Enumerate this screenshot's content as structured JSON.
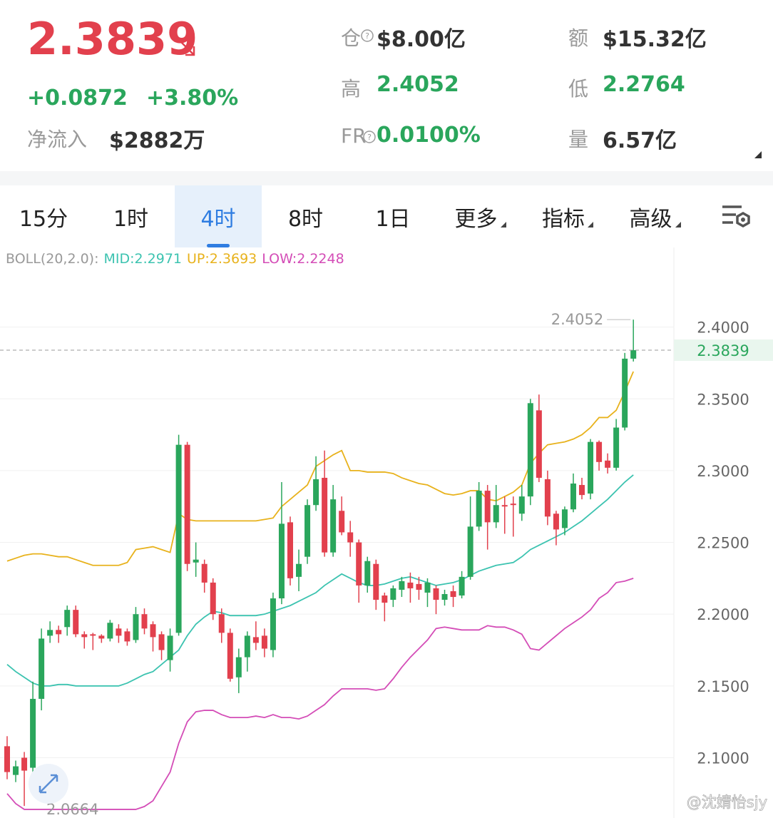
{
  "header": {
    "price": "2.3839",
    "change": "+0.0872",
    "change_pct": "+3.80%",
    "net_inflow_label": "净流入",
    "net_inflow": "$2882万",
    "stats": [
      {
        "label": "仓",
        "value": "$8.00亿"
      },
      {
        "label": "额",
        "value": "$15.32亿"
      },
      {
        "label": "高",
        "value": "2.4052"
      },
      {
        "label": "低",
        "value": "2.2764"
      },
      {
        "label": "FR",
        "value": "0.0100%"
      },
      {
        "label": "量",
        "value": "6.57亿"
      }
    ]
  },
  "tabs": [
    "15分",
    "1时",
    "4时",
    "8时",
    "1日",
    "更多",
    "指标",
    "高级"
  ],
  "active_tab": 2,
  "indicator": {
    "name": "BOLL(20,2.0):",
    "mid": "MID:2.2971",
    "up": "UP:2.3693",
    "low": "LOW:2.2248"
  },
  "watermark": "@沈婧怡sjy",
  "chart_data": {
    "type": "candlestick",
    "up_color": "#2aa65c",
    "down_color": "#e2404d",
    "open": [
      2.108,
      2.088,
      2.1,
      2.093,
      2.141,
      2.185,
      2.189,
      2.191,
      2.203,
      2.186,
      2.186,
      2.185,
      2.183,
      2.19,
      2.188,
      2.182,
      2.2,
      2.193,
      2.186,
      2.168,
      2.187,
      2.318,
      2.236,
      2.235,
      2.222,
      2.2,
      2.187,
      2.156,
      2.17,
      2.184,
      2.185,
      2.175,
      2.211,
      2.264,
      2.226,
      2.24,
      2.276,
      2.295,
      2.243,
      2.272,
      2.257,
      2.25,
      2.22,
      2.235,
      2.213,
      2.21,
      2.217,
      2.222,
      2.221,
      2.215,
      2.218,
      2.21,
      2.216,
      2.213,
      2.226,
      2.261,
      2.286,
      2.264,
      2.276,
      2.277,
      2.27,
      2.282,
      2.342,
      2.294,
      2.27,
      2.26,
      2.273,
      2.29,
      2.284,
      2.32,
      2.307,
      2.302,
      2.33,
      2.378
    ],
    "high": [
      2.115,
      2.098,
      2.104,
      2.153,
      2.19,
      2.195,
      2.192,
      2.206,
      2.206,
      2.188,
      2.187,
      2.186,
      2.196,
      2.193,
      2.19,
      2.205,
      2.204,
      2.195,
      2.188,
      2.19,
      2.325,
      2.32,
      2.25,
      2.238,
      2.225,
      2.204,
      2.19,
      2.176,
      2.188,
      2.195,
      2.19,
      2.215,
      2.292,
      2.268,
      2.245,
      2.28,
      2.31,
      2.314,
      2.29,
      2.282,
      2.265,
      2.252,
      2.24,
      2.238,
      2.215,
      2.22,
      2.226,
      2.229,
      2.226,
      2.225,
      2.22,
      2.217,
      2.22,
      2.23,
      2.282,
      2.292,
      2.29,
      2.29,
      2.282,
      2.282,
      2.29,
      2.35,
      2.353,
      2.3,
      2.272,
      2.275,
      2.298,
      2.295,
      2.322,
      2.321,
      2.312,
      2.336,
      2.382,
      2.4052
    ],
    "low": [
      2.085,
      2.083,
      2.0664,
      2.09,
      2.133,
      2.18,
      2.18,
      2.185,
      2.184,
      2.176,
      2.175,
      2.18,
      2.181,
      2.18,
      2.178,
      2.18,
      2.186,
      2.174,
      2.168,
      2.16,
      2.185,
      2.23,
      2.226,
      2.215,
      2.196,
      2.18,
      2.153,
      2.145,
      2.16,
      2.175,
      2.17,
      2.17,
      2.207,
      2.22,
      2.216,
      2.235,
      2.272,
      2.24,
      2.24,
      2.255,
      2.24,
      2.208,
      2.215,
      2.203,
      2.195,
      2.205,
      2.212,
      2.208,
      2.21,
      2.205,
      2.2,
      2.206,
      2.205,
      2.211,
      2.224,
      2.258,
      2.245,
      2.26,
      2.256,
      2.254,
      2.265,
      2.276,
      2.292,
      2.262,
      2.248,
      2.255,
      2.271,
      2.28,
      2.28,
      2.3,
      2.298,
      2.3,
      2.328,
      2.376
    ],
    "close": [
      2.09,
      2.094,
      2.091,
      2.141,
      2.183,
      2.189,
      2.186,
      2.203,
      2.186,
      2.184,
      2.185,
      2.183,
      2.194,
      2.185,
      2.181,
      2.2,
      2.19,
      2.184,
      2.175,
      2.185,
      2.318,
      2.235,
      2.238,
      2.222,
      2.2,
      2.187,
      2.155,
      2.17,
      2.185,
      2.18,
      2.176,
      2.211,
      2.263,
      2.225,
      2.235,
      2.276,
      2.294,
      2.243,
      2.28,
      2.257,
      2.25,
      2.22,
      2.237,
      2.21,
      2.208,
      2.218,
      2.223,
      2.218,
      2.217,
      2.222,
      2.21,
      2.214,
      2.212,
      2.226,
      2.261,
      2.286,
      2.264,
      2.276,
      2.275,
      2.276,
      2.282,
      2.347,
      2.295,
      2.268,
      2.259,
      2.273,
      2.291,
      2.283,
      2.32,
      2.306,
      2.302,
      2.33,
      2.378,
      2.3839
    ],
    "series": [
      {
        "name": "UP",
        "color": "#e8b21c",
        "values": [
          2.237,
          2.239,
          2.241,
          2.242,
          2.242,
          2.241,
          2.24,
          2.24,
          2.238,
          2.236,
          2.234,
          2.234,
          2.234,
          2.234,
          2.236,
          2.245,
          2.246,
          2.247,
          2.245,
          2.243,
          2.27,
          2.266,
          2.265,
          2.265,
          2.265,
          2.265,
          2.265,
          2.265,
          2.265,
          2.265,
          2.266,
          2.267,
          2.275,
          2.28,
          2.285,
          2.29,
          2.303,
          2.307,
          2.311,
          2.314,
          2.3,
          2.3,
          2.299,
          2.299,
          2.299,
          2.298,
          2.295,
          2.293,
          2.291,
          2.29,
          2.287,
          2.284,
          2.283,
          2.284,
          2.286,
          2.286,
          2.28,
          2.279,
          2.282,
          2.285,
          2.29,
          2.305,
          2.312,
          2.318,
          2.319,
          2.32,
          2.322,
          2.325,
          2.33,
          2.337,
          2.337,
          2.342,
          2.355,
          2.369
        ]
      },
      {
        "name": "MID",
        "color": "#3cc3b0",
        "values": [
          2.165,
          2.16,
          2.156,
          2.152,
          2.15,
          2.15,
          2.151,
          2.151,
          2.15,
          2.15,
          2.15,
          2.15,
          2.15,
          2.15,
          2.152,
          2.155,
          2.158,
          2.16,
          2.165,
          2.17,
          2.175,
          2.185,
          2.193,
          2.198,
          2.202,
          2.201,
          2.199,
          2.199,
          2.199,
          2.199,
          2.2,
          2.202,
          2.204,
          2.206,
          2.209,
          2.212,
          2.215,
          2.22,
          2.224,
          2.228,
          2.225,
          2.222,
          2.22,
          2.22,
          2.221,
          2.223,
          2.225,
          2.226,
          2.224,
          2.222,
          2.22,
          2.221,
          2.222,
          2.224,
          2.227,
          2.23,
          2.232,
          2.234,
          2.235,
          2.236,
          2.24,
          2.245,
          2.248,
          2.251,
          2.254,
          2.257,
          2.261,
          2.265,
          2.27,
          2.275,
          2.28,
          2.286,
          2.292,
          2.297
        ]
      },
      {
        "name": "LOW",
        "color": "#d44db7",
        "values": [
          2.075,
          2.068,
          2.064,
          2.064,
          2.064,
          2.064,
          2.064,
          2.064,
          2.064,
          2.064,
          2.064,
          2.064,
          2.064,
          2.064,
          2.064,
          2.064,
          2.066,
          2.07,
          2.08,
          2.09,
          2.11,
          2.125,
          2.132,
          2.133,
          2.133,
          2.13,
          2.128,
          2.128,
          2.128,
          2.129,
          2.128,
          2.13,
          2.128,
          2.128,
          2.127,
          2.129,
          2.133,
          2.137,
          2.143,
          2.148,
          2.148,
          2.148,
          2.148,
          2.147,
          2.148,
          2.155,
          2.163,
          2.17,
          2.176,
          2.182,
          2.19,
          2.191,
          2.19,
          2.189,
          2.189,
          2.189,
          2.192,
          2.191,
          2.191,
          2.189,
          2.186,
          2.176,
          2.175,
          2.18,
          2.185,
          2.19,
          2.194,
          2.198,
          2.203,
          2.211,
          2.215,
          2.222,
          2.223,
          2.225
        ]
      }
    ],
    "ylim": [
      2.058,
      2.449
    ],
    "yticks": [
      {
        "value": 2.1,
        "label": "2.1000"
      },
      {
        "value": 2.15,
        "label": "2.1500"
      },
      {
        "value": 2.2,
        "label": "2.2000"
      },
      {
        "value": 2.25,
        "label": "2.2500"
      },
      {
        "value": 2.3,
        "label": "2.3000"
      },
      {
        "value": 2.35,
        "label": "2.3500"
      },
      {
        "value": 2.4,
        "label": "2.4000"
      }
    ],
    "grid": true,
    "last_price": 2.3839,
    "max_mark": 2.4052,
    "min_mark": 2.0664
  }
}
